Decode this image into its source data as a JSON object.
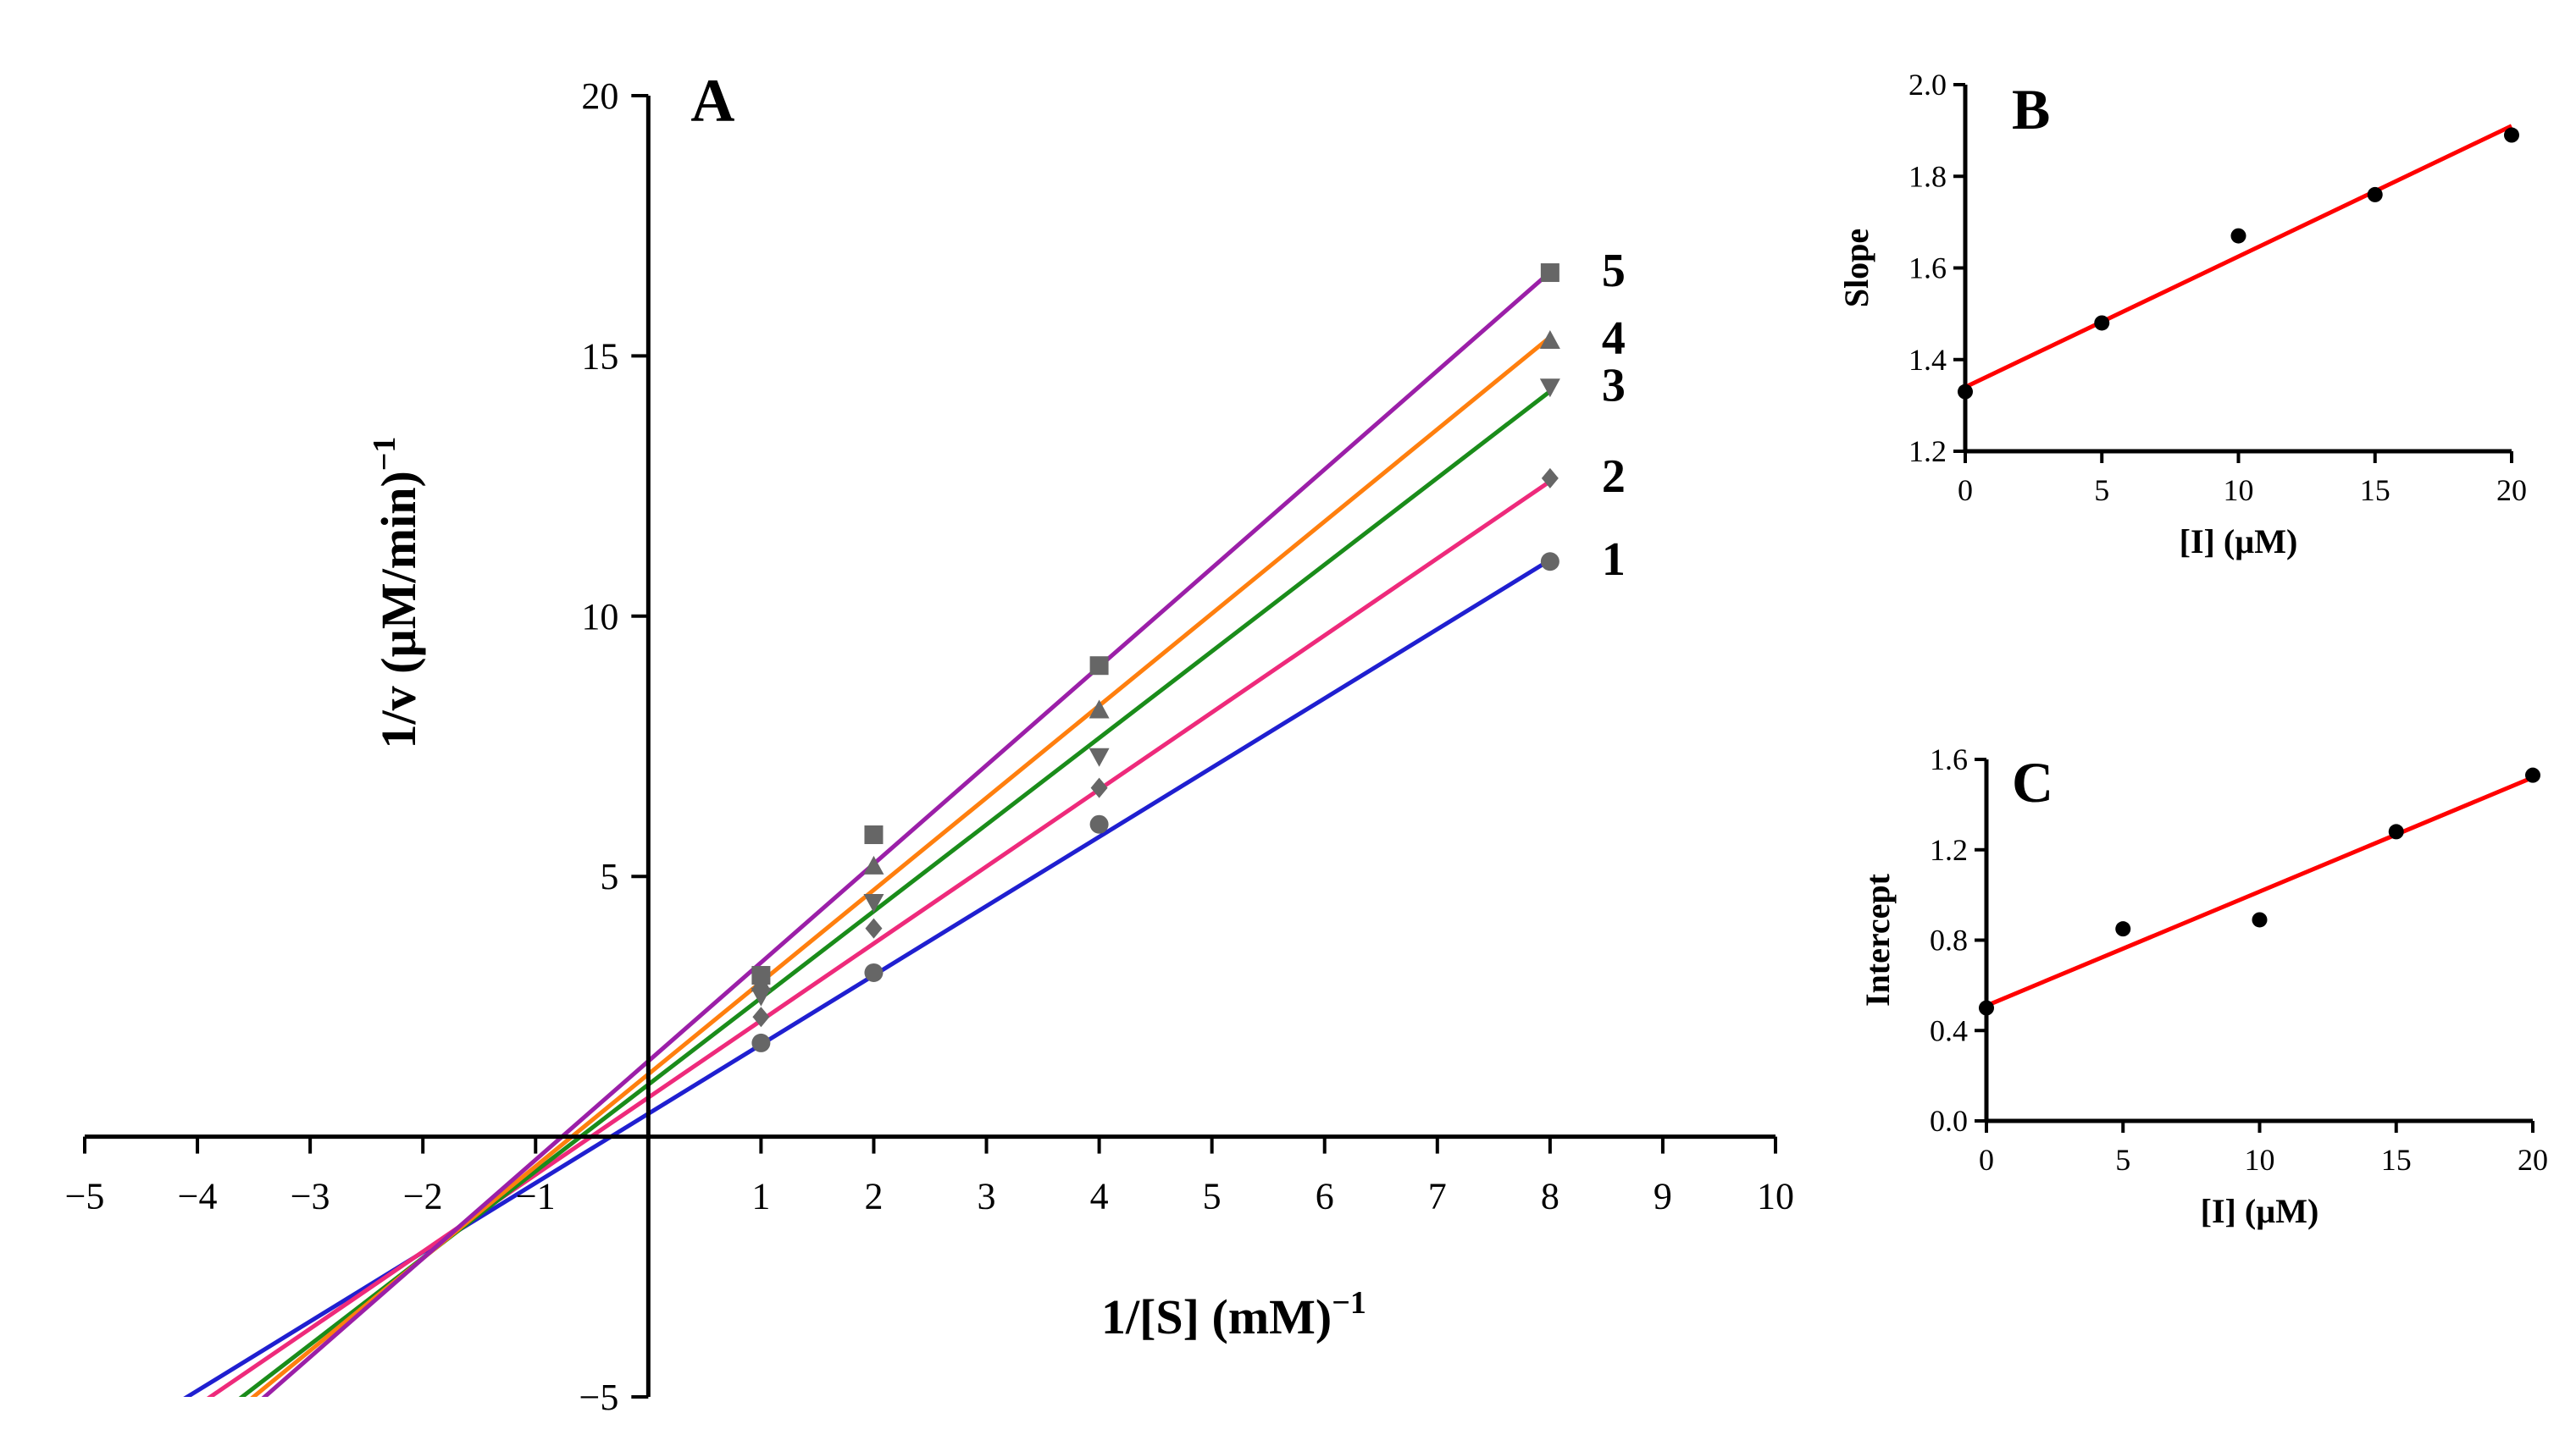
{
  "chart_data": [
    {
      "panel": "A",
      "type": "line",
      "title": "A",
      "xlabel": "1/[S] (mM)",
      "xlabel_sup": "−1",
      "ylabel": "1/v (µM/min)",
      "ylabel_sup": "−1",
      "xlim": [
        -5,
        10
      ],
      "ylim": [
        -5,
        20
      ],
      "xticks": [
        -5,
        -4,
        -3,
        -2,
        -1,
        1,
        2,
        3,
        4,
        5,
        6,
        7,
        8,
        9,
        10
      ],
      "xtick_labels": [
        "−5",
        "−4",
        "−3",
        "−2",
        "−1",
        "1",
        "2",
        "3",
        "4",
        "5",
        "6",
        "7",
        "8",
        "9",
        "10"
      ],
      "yticks": [
        -5,
        5,
        10,
        15,
        20
      ],
      "ytick_labels": [
        "−5",
        "5",
        "10",
        "15",
        "20"
      ],
      "fit_x_range": [
        -4.15,
        8
      ],
      "series": [
        {
          "name": "1",
          "color": "#1f1fd0",
          "marker": "circle",
          "x": [
            1,
            2,
            4,
            8
          ],
          "y": [
            1.8,
            3.15,
            6.0,
            11.05
          ],
          "fit_slope": 1.33,
          "fit_intercept": 0.44
        },
        {
          "name": "2",
          "color": "#ee2a7b",
          "marker": "diamond",
          "x": [
            1,
            2,
            4,
            8
          ],
          "y": [
            2.3,
            4.0,
            6.7,
            12.65
          ],
          "fit_slope": 1.48,
          "fit_intercept": 0.75
        },
        {
          "name": "3",
          "color": "#1a8c1a",
          "marker": "triangle-down",
          "x": [
            1,
            2,
            4,
            8
          ],
          "y": [
            2.7,
            4.5,
            7.3,
            14.4
          ],
          "fit_slope": 1.665,
          "fit_intercept": 1.0
        },
        {
          "name": "4",
          "color": "#ff7f0e",
          "marker": "triangle-up",
          "x": [
            1,
            2,
            4,
            8
          ],
          "y": [
            2.95,
            5.2,
            8.2,
            15.3
          ],
          "fit_slope": 1.77,
          "fit_intercept": 1.2
        },
        {
          "name": "5",
          "color": "#9b1fa8",
          "marker": "square",
          "x": [
            1,
            2,
            4,
            8
          ],
          "y": [
            3.1,
            5.8,
            9.05,
            16.6
          ],
          "fit_slope": 1.895,
          "fit_intercept": 1.45
        }
      ],
      "marker_color": "#666666"
    },
    {
      "panel": "B",
      "type": "scatter",
      "title": "B",
      "xlabel": "[I] (µM)",
      "ylabel": "Slope",
      "xlim": [
        0,
        20
      ],
      "ylim": [
        1.2,
        2.0
      ],
      "xticks": [
        0,
        5,
        10,
        15,
        20
      ],
      "xtick_labels": [
        "0",
        "5",
        "10",
        "15",
        "20"
      ],
      "yticks": [
        1.2,
        1.4,
        1.6,
        1.8,
        2.0
      ],
      "ytick_labels": [
        "1.2",
        "1.4",
        "1.6",
        "1.8",
        "2.0"
      ],
      "x": [
        0,
        5,
        10,
        15,
        20
      ],
      "y": [
        1.33,
        1.48,
        1.67,
        1.76,
        1.89
      ],
      "fit_slope": 0.0285,
      "fit_intercept": 1.34,
      "fit_color": "#ff0000"
    },
    {
      "panel": "C",
      "type": "scatter",
      "title": "C",
      "xlabel": "[I] (µM)",
      "ylabel": "Intercept",
      "xlim": [
        0,
        20
      ],
      "ylim": [
        0,
        1.6
      ],
      "xticks": [
        0,
        5,
        10,
        15,
        20
      ],
      "xtick_labels": [
        "0",
        "5",
        "10",
        "15",
        "20"
      ],
      "yticks": [
        0,
        0.4,
        0.8,
        1.2,
        1.6
      ],
      "ytick_labels": [
        "0.0",
        "0.4",
        "0.8",
        "1.2",
        "1.6"
      ],
      "x": [
        0,
        5,
        10,
        15,
        20
      ],
      "y": [
        0.5,
        0.85,
        0.89,
        1.28,
        1.53
      ],
      "fit_slope": 0.0505,
      "fit_intercept": 0.51,
      "fit_color": "#ff0000"
    }
  ]
}
